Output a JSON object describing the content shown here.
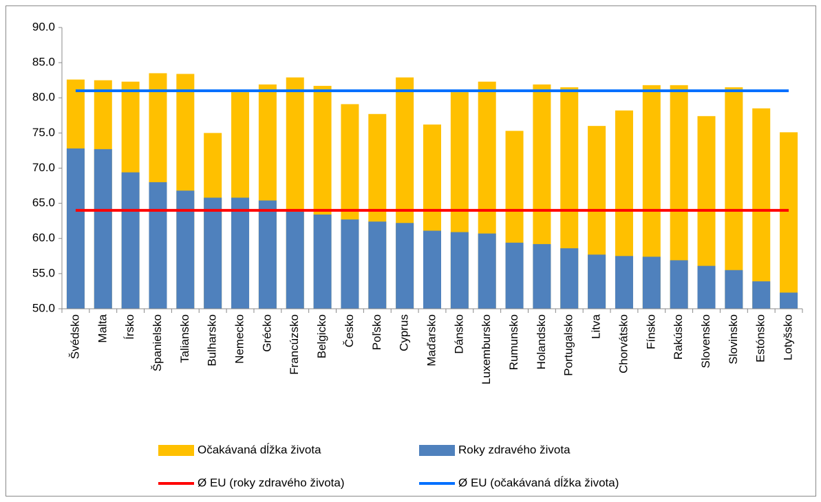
{
  "chart_data": {
    "type": "bar",
    "categories": [
      "Švédsko",
      "Malta",
      "Írsko",
      "Španielsko",
      "Taliansko",
      "Bulharsko",
      "Nemecko",
      "Grécko",
      "Francúzsko",
      "Belgicko",
      "Česko",
      "Poľsko",
      "Cyprus",
      "Maďarsko",
      "Dánsko",
      "Luxembursko",
      "Rumunsko",
      "Holandsko",
      "Portugalsko",
      "Litva",
      "Chorvátsko",
      "Fínsko",
      "Rakúsko",
      "Slovensko",
      "Slovinsko",
      "Estónsko",
      "Lotyšsko"
    ],
    "series": [
      {
        "name": "Očakávaná dĺžka života",
        "type": "bar",
        "color": "#ffc000",
        "values": [
          82.6,
          82.5,
          82.3,
          83.5,
          83.4,
          75.0,
          80.8,
          81.9,
          82.9,
          81.7,
          79.1,
          77.7,
          82.9,
          76.2,
          80.8,
          82.3,
          75.3,
          81.9,
          81.5,
          76.0,
          78.2,
          81.8,
          81.8,
          77.4,
          81.5,
          78.5,
          75.1
        ]
      },
      {
        "name": "Roky zdravého života",
        "type": "bar",
        "color": "#4f81bd",
        "values": [
          72.8,
          72.7,
          69.4,
          68.0,
          66.8,
          65.8,
          65.8,
          65.4,
          63.8,
          63.4,
          62.7,
          62.4,
          62.2,
          61.1,
          60.9,
          60.7,
          59.4,
          59.2,
          58.6,
          57.7,
          57.5,
          57.4,
          56.9,
          56.1,
          55.5,
          53.9,
          52.3
        ]
      },
      {
        "name": "Ø EU (roky zdravého života)",
        "type": "line",
        "color": "#ff0000",
        "values": [
          64.0,
          64.0,
          64.0,
          64.0,
          64.0,
          64.0,
          64.0,
          64.0,
          64.0,
          64.0,
          64.0,
          64.0,
          64.0,
          64.0,
          64.0,
          64.0,
          64.0,
          64.0,
          64.0,
          64.0,
          64.0,
          64.0,
          64.0,
          64.0,
          64.0,
          64.0,
          64.0
        ]
      },
      {
        "name": "Ø EU (očakávaná dĺžka života)",
        "type": "line",
        "color": "#0070ff",
        "values": [
          81.0,
          81.0,
          81.0,
          81.0,
          81.0,
          81.0,
          81.0,
          81.0,
          81.0,
          81.0,
          81.0,
          81.0,
          81.0,
          81.0,
          81.0,
          81.0,
          81.0,
          81.0,
          81.0,
          81.0,
          81.0,
          81.0,
          81.0,
          81.0,
          81.0,
          81.0,
          81.0
        ]
      }
    ],
    "ylim": [
      50,
      90
    ],
    "yticks": [
      {
        "value": 50,
        "label": "50.0"
      },
      {
        "value": 55,
        "label": "55.0"
      },
      {
        "value": 60,
        "label": "60.0"
      },
      {
        "value": 65,
        "label": "65.0"
      },
      {
        "value": 70,
        "label": "70.0"
      },
      {
        "value": 75,
        "label": "75.0"
      },
      {
        "value": 80,
        "label": "80.0"
      },
      {
        "value": 85,
        "label": "85.0"
      },
      {
        "value": 90,
        "label": "90.0"
      }
    ],
    "grid": false
  }
}
